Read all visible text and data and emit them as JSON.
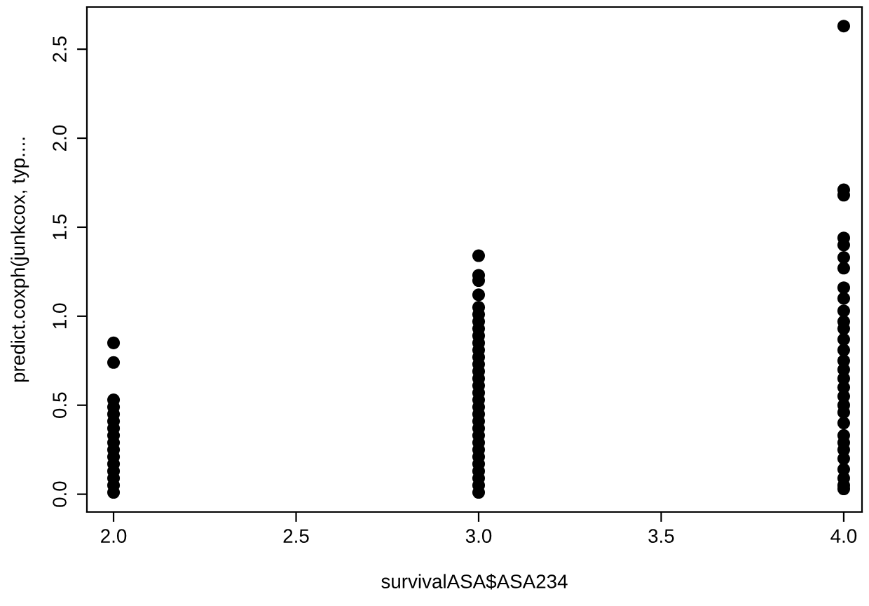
{
  "chart_data": {
    "type": "scatter",
    "xlabel": "survivalASA$ASA234",
    "ylabel": "predict.coxph(junkcox, typ....",
    "xlim": [
      1.927,
      4.05
    ],
    "ylim": [
      -0.1,
      2.737
    ],
    "xticks": [
      {
        "value": 2.0,
        "label": "2.0"
      },
      2.5,
      {
        "value": 3.0,
        "label": "3.0"
      },
      3.5,
      {
        "value": 4.0,
        "label": "4.0"
      }
    ],
    "yticks": [
      {
        "value": 0.0,
        "label": "0.0"
      },
      0.5,
      {
        "value": 1.0,
        "label": "1.0"
      },
      1.5,
      {
        "value": 2.0,
        "label": "2.0"
      },
      2.5
    ],
    "grid": false,
    "legend": false,
    "marker": "circle",
    "series": [
      {
        "color": "#000000",
        "x": [
          2,
          2,
          2,
          2,
          2,
          2,
          2,
          2,
          2,
          2,
          2,
          2,
          2,
          2,
          2,
          2,
          3,
          3,
          3,
          3,
          3,
          3,
          3,
          3,
          3,
          3,
          3,
          3,
          3,
          3,
          3,
          3,
          3,
          3,
          3,
          3,
          3,
          3,
          3,
          3,
          3,
          3,
          3,
          3,
          3,
          3,
          3,
          4,
          4,
          4,
          4,
          4,
          4,
          4,
          4,
          4,
          4,
          4,
          4,
          4,
          4,
          4,
          4,
          4,
          4,
          4,
          4,
          4,
          4,
          4,
          4,
          4,
          4,
          4,
          4,
          4,
          4
        ],
        "values": [
          0.85,
          0.74,
          0.53,
          0.49,
          0.45,
          0.41,
          0.37,
          0.33,
          0.29,
          0.25,
          0.21,
          0.17,
          0.13,
          0.09,
          0.05,
          0.01,
          1.34,
          1.23,
          1.2,
          1.12,
          1.05,
          1.01,
          0.97,
          0.93,
          0.89,
          0.85,
          0.81,
          0.77,
          0.73,
          0.69,
          0.65,
          0.61,
          0.57,
          0.53,
          0.49,
          0.45,
          0.41,
          0.37,
          0.33,
          0.29,
          0.25,
          0.21,
          0.17,
          0.13,
          0.09,
          0.05,
          0.01,
          2.63,
          1.71,
          1.68,
          1.44,
          1.4,
          1.33,
          1.27,
          1.16,
          1.1,
          1.03,
          0.97,
          0.93,
          0.87,
          0.81,
          0.75,
          0.7,
          0.65,
          0.6,
          0.55,
          0.5,
          0.46,
          0.4,
          0.33,
          0.29,
          0.25,
          0.2,
          0.14,
          0.09,
          0.05,
          0.03
        ]
      }
    ]
  }
}
